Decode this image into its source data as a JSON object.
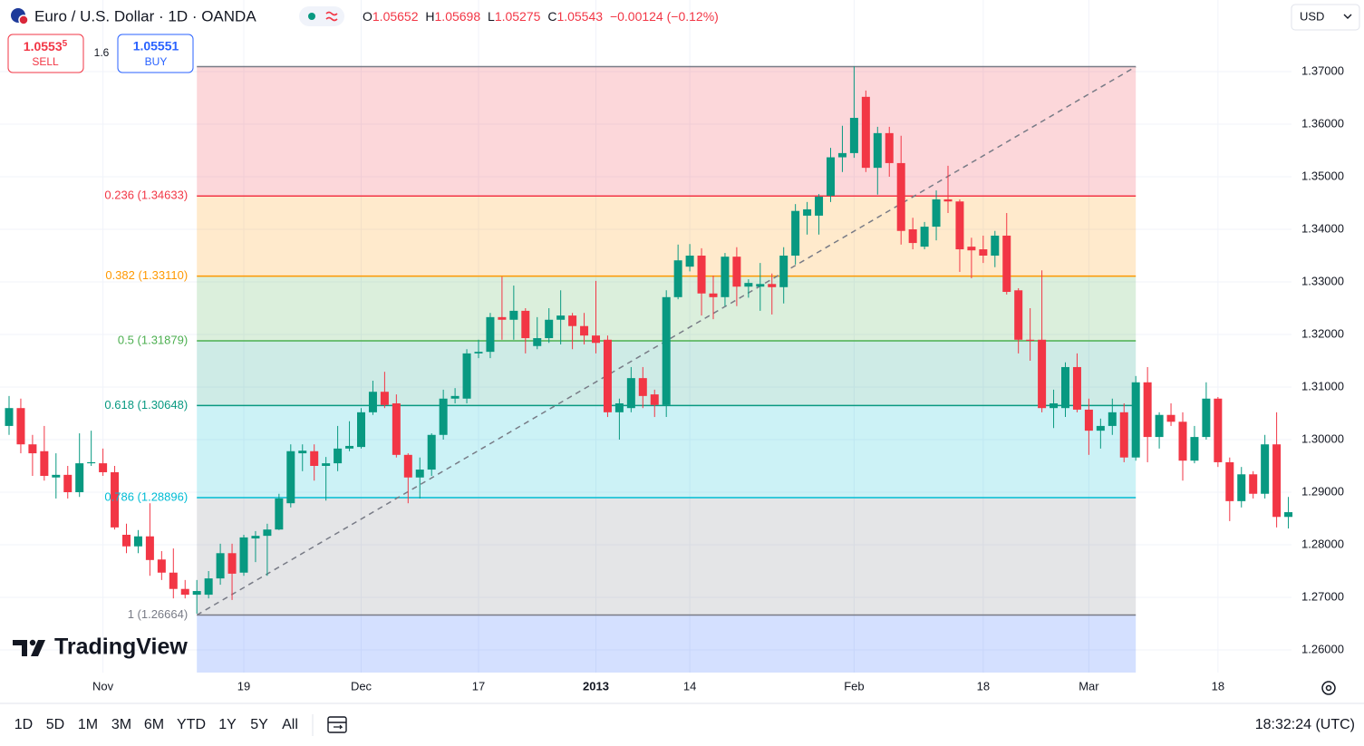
{
  "header": {
    "symbol": "Euro / U.S. Dollar · 1D · OANDA",
    "ohlc": [
      [
        "O",
        "1.05652"
      ],
      [
        "H",
        "1.05698"
      ],
      [
        "L",
        "1.05275"
      ],
      [
        "C",
        "1.05543"
      ]
    ],
    "change": "−0.00124 (−0.12%)"
  },
  "trade": {
    "sell_price": "1.0553",
    "sell_pip": "5",
    "sell_label": "SELL",
    "spread": "1.6",
    "buy_price": "1.05551",
    "buy_label": "BUY"
  },
  "currency": "USD",
  "logo": "TradingView",
  "toolbar": {
    "ranges": [
      "1D",
      "5D",
      "1M",
      "3M",
      "6M",
      "YTD",
      "1Y",
      "5Y",
      "All"
    ],
    "clock": "18:32:24 (UTC)"
  },
  "chart_data": {
    "type": "candlestick",
    "x": [
      null,
      null,
      null,
      null,
      null,
      null,
      null,
      null,
      "Nov",
      null,
      null,
      null,
      null,
      null,
      null,
      null,
      null,
      null,
      null,
      null,
      "19",
      null,
      null,
      null,
      null,
      null,
      null,
      null,
      null,
      null,
      "Dec",
      null,
      null,
      null,
      null,
      null,
      null,
      null,
      null,
      null,
      "17",
      null,
      null,
      null,
      null,
      null,
      null,
      null,
      null,
      null,
      "2013",
      null,
      null,
      null,
      null,
      null,
      null,
      null,
      "14",
      null,
      null,
      null,
      null,
      null,
      null,
      null,
      null,
      null,
      null,
      null,
      null,
      null,
      "Feb",
      null,
      null,
      null,
      null,
      null,
      null,
      null,
      null,
      null,
      null,
      "18",
      null,
      null,
      null,
      null,
      null,
      null,
      null,
      null,
      "Mar",
      null,
      null,
      null,
      null,
      null,
      null,
      null,
      null,
      null,
      null,
      "18",
      null,
      null,
      null,
      null,
      null,
      null
    ],
    "open": [
      1.3026,
      1.306,
      1.2991,
      1.2978,
      1.2928,
      1.2933,
      1.29,
      1.2955,
      1.2955,
      1.2938,
      1.2819,
      1.2797,
      1.2816,
      1.2772,
      1.2747,
      1.2716,
      1.2705,
      1.2705,
      1.2736,
      1.2784,
      1.2747,
      1.2812,
      1.2817,
      1.2829,
      1.2879,
      1.2974,
      1.2978,
      1.295,
      1.2955,
      1.2983,
      1.2986,
      1.3052,
      1.3091,
      1.3069,
      1.2971,
      1.2928,
      1.2943,
      1.3009,
      1.3078,
      1.3078,
      1.3164,
      1.3167,
      1.3233,
      1.3228,
      1.3245,
      1.3178,
      1.3193,
      1.3228,
      1.3236,
      1.3216,
      1.3198,
      1.319,
      1.3052,
      1.306,
      1.3117,
      1.3086,
      1.3066,
      1.3271,
      1.3329,
      1.335,
      1.3278,
      1.3271,
      1.3348,
      1.3291,
      1.3291,
      1.3296,
      1.329,
      1.335,
      1.3426,
      1.3426,
      1.3464,
      1.3537,
      1.3545,
      1.3652,
      1.3517,
      1.3583,
      1.3526,
      1.34,
      1.3367,
      1.3405,
      1.3457,
      1.3453,
      1.3367,
      1.3362,
      1.335,
      1.3388,
      1.3284,
      1.319,
      1.319,
      1.306,
      1.306,
      1.3138,
      1.3057,
      1.3017,
      1.3026,
      1.3052,
      1.2966,
      1.3109,
      1.3005,
      1.3047,
      1.3034,
      1.296,
      1.3005,
      1.3078,
      1.2957,
      1.2883,
      1.2934,
      1.2897,
      1.2991,
      1.2853
    ],
    "high": [
      1.3083,
      1.3078,
      1.3009,
      1.3026,
      1.2974,
      1.295,
      1.3012,
      1.3017,
      1.2983,
      1.295,
      1.284,
      1.2828,
      1.2879,
      1.2788,
      1.2793,
      1.2733,
      1.2733,
      1.275,
      1.2802,
      1.2802,
      1.2819,
      1.2826,
      1.284,
      1.2897,
      1.2991,
      1.2991,
      1.2991,
      1.2967,
      1.3026,
      1.3035,
      1.306,
      1.3112,
      1.3129,
      1.3086,
      1.2974,
      1.2966,
      1.3012,
      1.3095,
      1.3098,
      1.3172,
      1.319,
      1.3241,
      1.331,
      1.3293,
      1.325,
      1.3233,
      1.325,
      1.3284,
      1.3241,
      1.3241,
      1.3302,
      1.3198,
      1.3078,
      1.3138,
      1.3138,
      1.3095,
      1.3284,
      1.3371,
      1.3372,
      1.3364,
      1.3312,
      1.3355,
      1.3366,
      1.3305,
      1.3336,
      1.3316,
      1.3366,
      1.3448,
      1.3452,
      1.3467,
      1.3555,
      1.3597,
      1.371,
      1.3664,
      1.3595,
      1.3595,
      1.3578,
      1.3422,
      1.3414,
      1.3474,
      1.3521,
      1.3457,
      1.3384,
      1.3388,
      1.3397,
      1.3431,
      1.3288,
      1.325,
      1.3322,
      1.3095,
      1.3147,
      1.3164,
      1.3078,
      1.304,
      1.3078,
      1.3069,
      1.3121,
      1.3138,
      1.3052,
      1.3069,
      1.3052,
      1.3026,
      1.3109,
      1.3081,
      1.2966,
      1.2948,
      1.294,
      1.3009,
      1.3052,
      1.2891
    ],
    "low": [
      1.3009,
      1.2974,
      1.2931,
      1.2922,
      1.2888,
      1.2888,
      1.2891,
      1.295,
      1.2931,
      1.2829,
      1.2784,
      1.2784,
      1.2741,
      1.2733,
      1.2698,
      1.2698,
      1.2669,
      1.2698,
      1.2724,
      1.2695,
      1.2741,
      1.2767,
      1.2741,
      1.2828,
      1.2871,
      1.294,
      1.2922,
      1.2884,
      1.294,
      1.2978,
      1.2983,
      1.3047,
      1.306,
      1.2966,
      1.2879,
      1.2888,
      1.2931,
      1.3,
      1.3069,
      1.3069,
      1.3155,
      1.3155,
      1.319,
      1.319,
      1.3164,
      1.3172,
      1.3184,
      1.3181,
      1.3172,
      1.3181,
      1.3164,
      1.3043,
      1.3,
      1.3052,
      1.306,
      1.3043,
      1.3043,
      1.3267,
      1.332,
      1.3236,
      1.3229,
      1.3254,
      1.3254,
      1.327,
      1.3245,
      1.3238,
      1.3259,
      1.3333,
      1.339,
      1.339,
      1.3452,
      1.3509,
      1.3536,
      1.3509,
      1.3466,
      1.35,
      1.3371,
      1.3362,
      1.3362,
      1.3379,
      1.3431,
      1.3319,
      1.3307,
      1.3336,
      1.3328,
      1.3276,
      1.3164,
      1.315,
      1.3052,
      1.3022,
      1.3043,
      1.3052,
      1.2971,
      1.2983,
      1.3009,
      1.2957,
      1.296,
      1.2957,
      1.2983,
      1.3026,
      1.2922,
      1.2955,
      1.3,
      1.2948,
      1.2845,
      1.2871,
      1.2888,
      1.2888,
      1.2833,
      1.2831
    ],
    "close": [
      1.306,
      1.2991,
      1.2974,
      1.2931,
      1.2933,
      1.29,
      1.2955,
      1.2957,
      1.2938,
      1.2833,
      1.2797,
      1.2816,
      1.2771,
      1.2747,
      1.2716,
      1.2705,
      1.2712,
      1.2736,
      1.2784,
      1.2745,
      1.2814,
      1.2817,
      1.2829,
      1.2888,
      1.2978,
      1.2979,
      1.295,
      1.2955,
      1.2983,
      1.2988,
      1.3052,
      1.3091,
      1.3066,
      1.2971,
      1.2928,
      1.2943,
      1.3009,
      1.3078,
      1.3083,
      1.3164,
      1.3167,
      1.3233,
      1.3228,
      1.3245,
      1.3193,
      1.3193,
      1.3228,
      1.3236,
      1.3216,
      1.3198,
      1.3184,
      1.3052,
      1.3069,
      1.3117,
      1.3083,
      1.3066,
      1.3271,
      1.3341,
      1.335,
      1.3278,
      1.3271,
      1.3348,
      1.3291,
      1.3298,
      1.3296,
      1.329,
      1.335,
      1.3435,
      1.3438,
      1.3462,
      1.3537,
      1.3545,
      1.3612,
      1.3517,
      1.3583,
      1.3526,
      1.3397,
      1.3374,
      1.3405,
      1.3457,
      1.3453,
      1.3362,
      1.336,
      1.335,
      1.3388,
      1.3281,
      1.319,
      1.3188,
      1.306,
      1.3069,
      1.3138,
      1.3057,
      1.3017,
      1.3026,
      1.3052,
      1.2966,
      1.3109,
      1.3005,
      1.3047,
      1.3034,
      1.296,
      1.3005,
      1.3078,
      1.2957,
      1.2883,
      1.2934,
      1.2897,
      1.2991,
      1.2853,
      1.2862
    ],
    "up_color": "#089981",
    "down_color": "#f23645",
    "ylim": [
      1.25569,
      1.38362
    ],
    "yticks": [
      {
        "value": 1.26,
        "label": "1.26000"
      },
      {
        "value": 1.27,
        "label": "1.27000"
      },
      {
        "value": 1.28,
        "label": "1.28000"
      },
      {
        "value": 1.29,
        "label": "1.29000"
      },
      {
        "value": 1.3,
        "label": "1.30000"
      },
      {
        "value": 1.31,
        "label": "1.31000"
      },
      {
        "value": 1.32,
        "label": "1.32000"
      },
      {
        "value": 1.33,
        "label": "1.33000"
      },
      {
        "value": 1.34,
        "label": "1.34000"
      },
      {
        "value": 1.35,
        "label": "1.35000"
      },
      {
        "value": 1.36,
        "label": "1.36000"
      },
      {
        "value": 1.37,
        "label": "1.37000"
      }
    ],
    "grid": true,
    "fib": {
      "start": 16,
      "end": 96,
      "levels": [
        {
          "value": 1.37094,
          "color": "#787b86"
        },
        {
          "value": 1.34633,
          "label": "0.236 (1.34633)",
          "color": "#f23645"
        },
        {
          "value": 1.3311,
          "label": "0.382 (1.33110)",
          "color": "#ff9800"
        },
        {
          "value": 1.31879,
          "label": "0.5 (1.31879)",
          "color": "#4caf50"
        },
        {
          "value": 1.30648,
          "label": "0.618 (1.30648)",
          "color": "#089981"
        },
        {
          "value": 1.28896,
          "label": "0.786 (1.28896)",
          "color": "#00bcd4"
        },
        {
          "value": 1.26664,
          "label": "1 (1.26664)",
          "color": "#787b86"
        }
      ],
      "below_color": "#2962ff",
      "trend_color": "#787b86"
    }
  }
}
